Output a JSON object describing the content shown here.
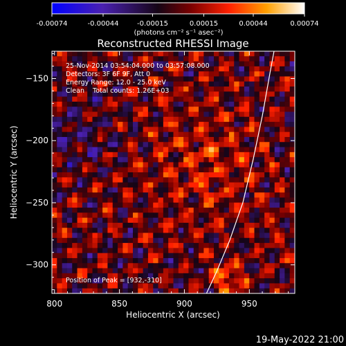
{
  "chart_data": {
    "type": "heatmap",
    "title": "Reconstructed RHESSI Image",
    "xlabel": "Heliocentric X (arcsec)",
    "ylabel": "Heliocentric Y (arcsec)",
    "xlim": [
      798,
      985
    ],
    "ylim": [
      -323,
      -128
    ],
    "x_ticks": [
      800,
      850,
      900,
      950
    ],
    "y_ticks": [
      -150,
      -200,
      -250,
      -300
    ],
    "colorbar": {
      "min": -0.00074,
      "max": 0.00074,
      "ticks": [
        "-0.00074",
        "-0.00044",
        "-0.00015",
        "0.00015",
        "0.00044",
        "0.00074"
      ],
      "label": "(photons cm⁻² s⁻¹ asec⁻²)",
      "colormap": [
        "#0000ff",
        "#5a1a8f",
        "#000000",
        "#8b0000",
        "#ff2000",
        "#ff9a00",
        "#ffffff"
      ]
    },
    "annotations": [
      "25-Nov-2014 03:54:04.000 to 03:57:08.000",
      "Detectors: 3F 6F 9F, Att 0",
      "Energy Range: 12.0 - 25.0 keV",
      "Clean    Total counts: 1.26E+03"
    ],
    "peak_label": "Position of Peak = [932,-310]",
    "peak": [
      932,
      -310
    ],
    "limb_curve": [
      [
        917,
        -323
      ],
      [
        925,
        -305
      ],
      [
        935,
        -280
      ],
      [
        945,
        -250
      ],
      [
        953,
        -215
      ],
      [
        960,
        -180
      ],
      [
        966,
        -145
      ],
      [
        969,
        -128
      ]
    ]
  },
  "footer": {
    "timestamp": "19-May-2022 21:00"
  }
}
